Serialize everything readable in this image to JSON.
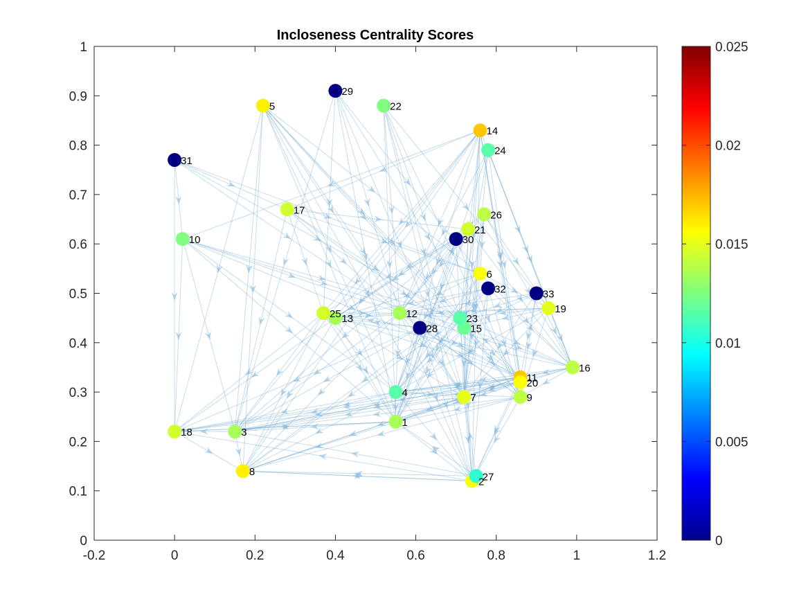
{
  "chart_data": {
    "type": "scatter",
    "title": "Incloseness Centrality Scores",
    "xlabel": "",
    "ylabel": "",
    "xlim": [
      -0.2,
      1.2
    ],
    "ylim": [
      0,
      1
    ],
    "xticks": [
      "-0.2",
      "0",
      "0.2",
      "0.4",
      "0.6",
      "0.8",
      "1",
      "1.2"
    ],
    "yticks": [
      "0",
      "0.1",
      "0.2",
      "0.3",
      "0.4",
      "0.5",
      "0.6",
      "0.7",
      "0.8",
      "0.9",
      "1"
    ],
    "grid": false,
    "colorbar": {
      "colormap": "jet",
      "range": [
        0,
        0.025
      ],
      "ticks": [
        "0",
        "0.005",
        "0.01",
        "0.015",
        "0.02",
        "0.025"
      ]
    },
    "nodes": [
      {
        "label": "1",
        "x": 0.55,
        "y": 0.24,
        "value": 0.0135
      },
      {
        "label": "2",
        "x": 0.74,
        "y": 0.12,
        "value": 0.0155
      },
      {
        "label": "3",
        "x": 0.15,
        "y": 0.22,
        "value": 0.0135
      },
      {
        "label": "4",
        "x": 0.55,
        "y": 0.3,
        "value": 0.0115
      },
      {
        "label": "5",
        "x": 0.22,
        "y": 0.88,
        "value": 0.016
      },
      {
        "label": "6",
        "x": 0.76,
        "y": 0.54,
        "value": 0.0155
      },
      {
        "label": "7",
        "x": 0.72,
        "y": 0.29,
        "value": 0.015
      },
      {
        "label": "8",
        "x": 0.17,
        "y": 0.14,
        "value": 0.016
      },
      {
        "label": "9",
        "x": 0.86,
        "y": 0.29,
        "value": 0.014
      },
      {
        "label": "10",
        "x": 0.02,
        "y": 0.61,
        "value": 0.0125
      },
      {
        "label": "11",
        "x": 0.86,
        "y": 0.33,
        "value": 0.017
      },
      {
        "label": "12",
        "x": 0.56,
        "y": 0.46,
        "value": 0.0135
      },
      {
        "label": "13",
        "x": 0.4,
        "y": 0.45,
        "value": 0.0135
      },
      {
        "label": "14",
        "x": 0.76,
        "y": 0.83,
        "value": 0.017
      },
      {
        "label": "15",
        "x": 0.72,
        "y": 0.43,
        "value": 0.012
      },
      {
        "label": "16",
        "x": 0.99,
        "y": 0.35,
        "value": 0.014
      },
      {
        "label": "17",
        "x": 0.28,
        "y": 0.67,
        "value": 0.0145
      },
      {
        "label": "18",
        "x": 0.0,
        "y": 0.22,
        "value": 0.0145
      },
      {
        "label": "19",
        "x": 0.93,
        "y": 0.47,
        "value": 0.015
      },
      {
        "label": "20",
        "x": 0.86,
        "y": 0.32,
        "value": 0.0155
      },
      {
        "label": "21",
        "x": 0.73,
        "y": 0.63,
        "value": 0.0145
      },
      {
        "label": "22",
        "x": 0.52,
        "y": 0.88,
        "value": 0.0125
      },
      {
        "label": "23",
        "x": 0.71,
        "y": 0.45,
        "value": 0.0115
      },
      {
        "label": "24",
        "x": 0.78,
        "y": 0.79,
        "value": 0.0115
      },
      {
        "label": "25",
        "x": 0.37,
        "y": 0.46,
        "value": 0.0145
      },
      {
        "label": "26",
        "x": 0.77,
        "y": 0.66,
        "value": 0.014
      },
      {
        "label": "27",
        "x": 0.75,
        "y": 0.13,
        "value": 0.0105
      },
      {
        "label": "28",
        "x": 0.61,
        "y": 0.43,
        "value": 0.0
      },
      {
        "label": "29",
        "x": 0.4,
        "y": 0.91,
        "value": 0.0
      },
      {
        "label": "30",
        "x": 0.7,
        "y": 0.61,
        "value": 0.0
      },
      {
        "label": "31",
        "x": 0.0,
        "y": 0.77,
        "value": 0.0
      },
      {
        "label": "32",
        "x": 0.78,
        "y": 0.51,
        "value": 0.0
      },
      {
        "label": "33",
        "x": 0.9,
        "y": 0.5,
        "value": 0.0
      }
    ],
    "edges": [
      [
        "5",
        "18"
      ],
      [
        "5",
        "3"
      ],
      [
        "5",
        "8"
      ],
      [
        "5",
        "1"
      ],
      [
        "5",
        "4"
      ],
      [
        "5",
        "12"
      ],
      [
        "5",
        "7"
      ],
      [
        "5",
        "6"
      ],
      [
        "5",
        "15"
      ],
      [
        "5",
        "23"
      ],
      [
        "5",
        "11"
      ],
      [
        "5",
        "2"
      ],
      [
        "29",
        "25"
      ],
      [
        "29",
        "12"
      ],
      [
        "29",
        "7"
      ],
      [
        "29",
        "6"
      ],
      [
        "29",
        "20"
      ],
      [
        "29",
        "3"
      ],
      [
        "29",
        "1"
      ],
      [
        "22",
        "12"
      ],
      [
        "22",
        "1"
      ],
      [
        "22",
        "7"
      ],
      [
        "22",
        "2"
      ],
      [
        "22",
        "15"
      ],
      [
        "22",
        "19"
      ],
      [
        "22",
        "9"
      ],
      [
        "14",
        "17"
      ],
      [
        "14",
        "10"
      ],
      [
        "14",
        "25"
      ],
      [
        "14",
        "12"
      ],
      [
        "14",
        "23"
      ],
      [
        "14",
        "15"
      ],
      [
        "14",
        "4"
      ],
      [
        "14",
        "7"
      ],
      [
        "14",
        "2"
      ],
      [
        "14",
        "11"
      ],
      [
        "14",
        "20"
      ],
      [
        "14",
        "9"
      ],
      [
        "14",
        "16"
      ],
      [
        "14",
        "13"
      ],
      [
        "14",
        "8"
      ],
      [
        "14",
        "3"
      ],
      [
        "24",
        "23"
      ],
      [
        "24",
        "12"
      ],
      [
        "24",
        "7"
      ],
      [
        "24",
        "11"
      ],
      [
        "24",
        "16"
      ],
      [
        "24",
        "19"
      ],
      [
        "24",
        "1"
      ],
      [
        "31",
        "10"
      ],
      [
        "31",
        "18"
      ],
      [
        "31",
        "17"
      ],
      [
        "31",
        "6"
      ],
      [
        "31",
        "23"
      ],
      [
        "31",
        "12"
      ],
      [
        "17",
        "25"
      ],
      [
        "17",
        "12"
      ],
      [
        "17",
        "6"
      ],
      [
        "17",
        "15"
      ],
      [
        "17",
        "11"
      ],
      [
        "17",
        "21"
      ],
      [
        "17",
        "3"
      ],
      [
        "10",
        "3"
      ],
      [
        "10",
        "18"
      ],
      [
        "10",
        "12"
      ],
      [
        "10",
        "23"
      ],
      [
        "10",
        "15"
      ],
      [
        "10",
        "11"
      ],
      [
        "10",
        "1"
      ],
      [
        "10",
        "4"
      ],
      [
        "26",
        "6"
      ],
      [
        "26",
        "19"
      ],
      [
        "26",
        "16"
      ],
      [
        "26",
        "12"
      ],
      [
        "26",
        "15"
      ],
      [
        "26",
        "7"
      ],
      [
        "26",
        "13"
      ],
      [
        "21",
        "12"
      ],
      [
        "21",
        "4"
      ],
      [
        "21",
        "13"
      ],
      [
        "21",
        "7"
      ],
      [
        "21",
        "1"
      ],
      [
        "21",
        "16"
      ],
      [
        "30",
        "25"
      ],
      [
        "30",
        "13"
      ],
      [
        "30",
        "12"
      ],
      [
        "30",
        "7"
      ],
      [
        "30",
        "9"
      ],
      [
        "30",
        "4"
      ],
      [
        "30",
        "3"
      ],
      [
        "30",
        "1"
      ],
      [
        "6",
        "4"
      ],
      [
        "6",
        "1"
      ],
      [
        "6",
        "12"
      ],
      [
        "6",
        "13"
      ],
      [
        "6",
        "7"
      ],
      [
        "6",
        "19"
      ],
      [
        "6",
        "16"
      ],
      [
        "32",
        "12"
      ],
      [
        "32",
        "13"
      ],
      [
        "32",
        "4"
      ],
      [
        "32",
        "7"
      ],
      [
        "32",
        "9"
      ],
      [
        "32",
        "16"
      ],
      [
        "32",
        "2"
      ],
      [
        "32",
        "8"
      ],
      [
        "33",
        "12"
      ],
      [
        "33",
        "15"
      ],
      [
        "33",
        "16"
      ],
      [
        "33",
        "11"
      ],
      [
        "33",
        "7"
      ],
      [
        "33",
        "23"
      ],
      [
        "33",
        "9"
      ],
      [
        "19",
        "12"
      ],
      [
        "19",
        "15"
      ],
      [
        "19",
        "4"
      ],
      [
        "19",
        "7"
      ],
      [
        "19",
        "16"
      ],
      [
        "19",
        "9"
      ],
      [
        "19",
        "23"
      ],
      [
        "19",
        "13"
      ],
      [
        "25",
        "1"
      ],
      [
        "25",
        "18"
      ],
      [
        "25",
        "8"
      ],
      [
        "25",
        "4"
      ],
      [
        "25",
        "12"
      ],
      [
        "25",
        "11"
      ],
      [
        "25",
        "3"
      ],
      [
        "13",
        "8"
      ],
      [
        "13",
        "1"
      ],
      [
        "13",
        "7"
      ],
      [
        "13",
        "12"
      ],
      [
        "13",
        "16"
      ],
      [
        "13",
        "18"
      ],
      [
        "12",
        "8"
      ],
      [
        "12",
        "3"
      ],
      [
        "12",
        "4"
      ],
      [
        "12",
        "7"
      ],
      [
        "12",
        "11"
      ],
      [
        "12",
        "2"
      ],
      [
        "12",
        "9"
      ],
      [
        "28",
        "3"
      ],
      [
        "28",
        "4"
      ],
      [
        "28",
        "1"
      ],
      [
        "28",
        "7"
      ],
      [
        "28",
        "9"
      ],
      [
        "28",
        "2"
      ],
      [
        "28",
        "11"
      ],
      [
        "28",
        "18"
      ],
      [
        "28",
        "13"
      ],
      [
        "28",
        "25"
      ],
      [
        "23",
        "4"
      ],
      [
        "23",
        "1"
      ],
      [
        "23",
        "16"
      ],
      [
        "23",
        "9"
      ],
      [
        "23",
        "2"
      ],
      [
        "23",
        "8"
      ],
      [
        "23",
        "12"
      ],
      [
        "15",
        "7"
      ],
      [
        "15",
        "11"
      ],
      [
        "15",
        "2"
      ],
      [
        "15",
        "1"
      ],
      [
        "15",
        "4"
      ],
      [
        "15",
        "16"
      ],
      [
        "15",
        "9"
      ],
      [
        "16",
        "11"
      ],
      [
        "16",
        "7"
      ],
      [
        "16",
        "4"
      ],
      [
        "16",
        "1"
      ],
      [
        "16",
        "3"
      ],
      [
        "16",
        "9"
      ],
      [
        "16",
        "12"
      ],
      [
        "4",
        "1"
      ],
      [
        "4",
        "8"
      ],
      [
        "4",
        "3"
      ],
      [
        "4",
        "18"
      ],
      [
        "4",
        "11"
      ],
      [
        "4",
        "2"
      ],
      [
        "4",
        "7"
      ],
      [
        "7",
        "2"
      ],
      [
        "7",
        "8"
      ],
      [
        "7",
        "3"
      ],
      [
        "7",
        "18"
      ],
      [
        "7",
        "11"
      ],
      [
        "7",
        "1"
      ],
      [
        "11",
        "18"
      ],
      [
        "11",
        "3"
      ],
      [
        "11",
        "8"
      ],
      [
        "11",
        "2"
      ],
      [
        "11",
        "1"
      ],
      [
        "11",
        "4"
      ],
      [
        "11",
        "7"
      ],
      [
        "20",
        "18"
      ],
      [
        "20",
        "3"
      ],
      [
        "20",
        "1"
      ],
      [
        "20",
        "2"
      ],
      [
        "20",
        "4"
      ],
      [
        "20",
        "7"
      ],
      [
        "9",
        "2"
      ],
      [
        "9",
        "1"
      ],
      [
        "9",
        "8"
      ],
      [
        "9",
        "4"
      ],
      [
        "9",
        "3"
      ],
      [
        "1",
        "18"
      ],
      [
        "1",
        "8"
      ],
      [
        "1",
        "3"
      ],
      [
        "1",
        "2"
      ],
      [
        "27",
        "8"
      ],
      [
        "27",
        "3"
      ],
      [
        "2",
        "8"
      ],
      [
        "2",
        "18"
      ],
      [
        "27",
        "7"
      ],
      [
        "27",
        "1"
      ],
      [
        "3",
        "8"
      ],
      [
        "18",
        "8"
      ],
      [
        "18",
        "1"
      ],
      [
        "3",
        "18"
      ],
      [
        "8",
        "2"
      ]
    ]
  }
}
